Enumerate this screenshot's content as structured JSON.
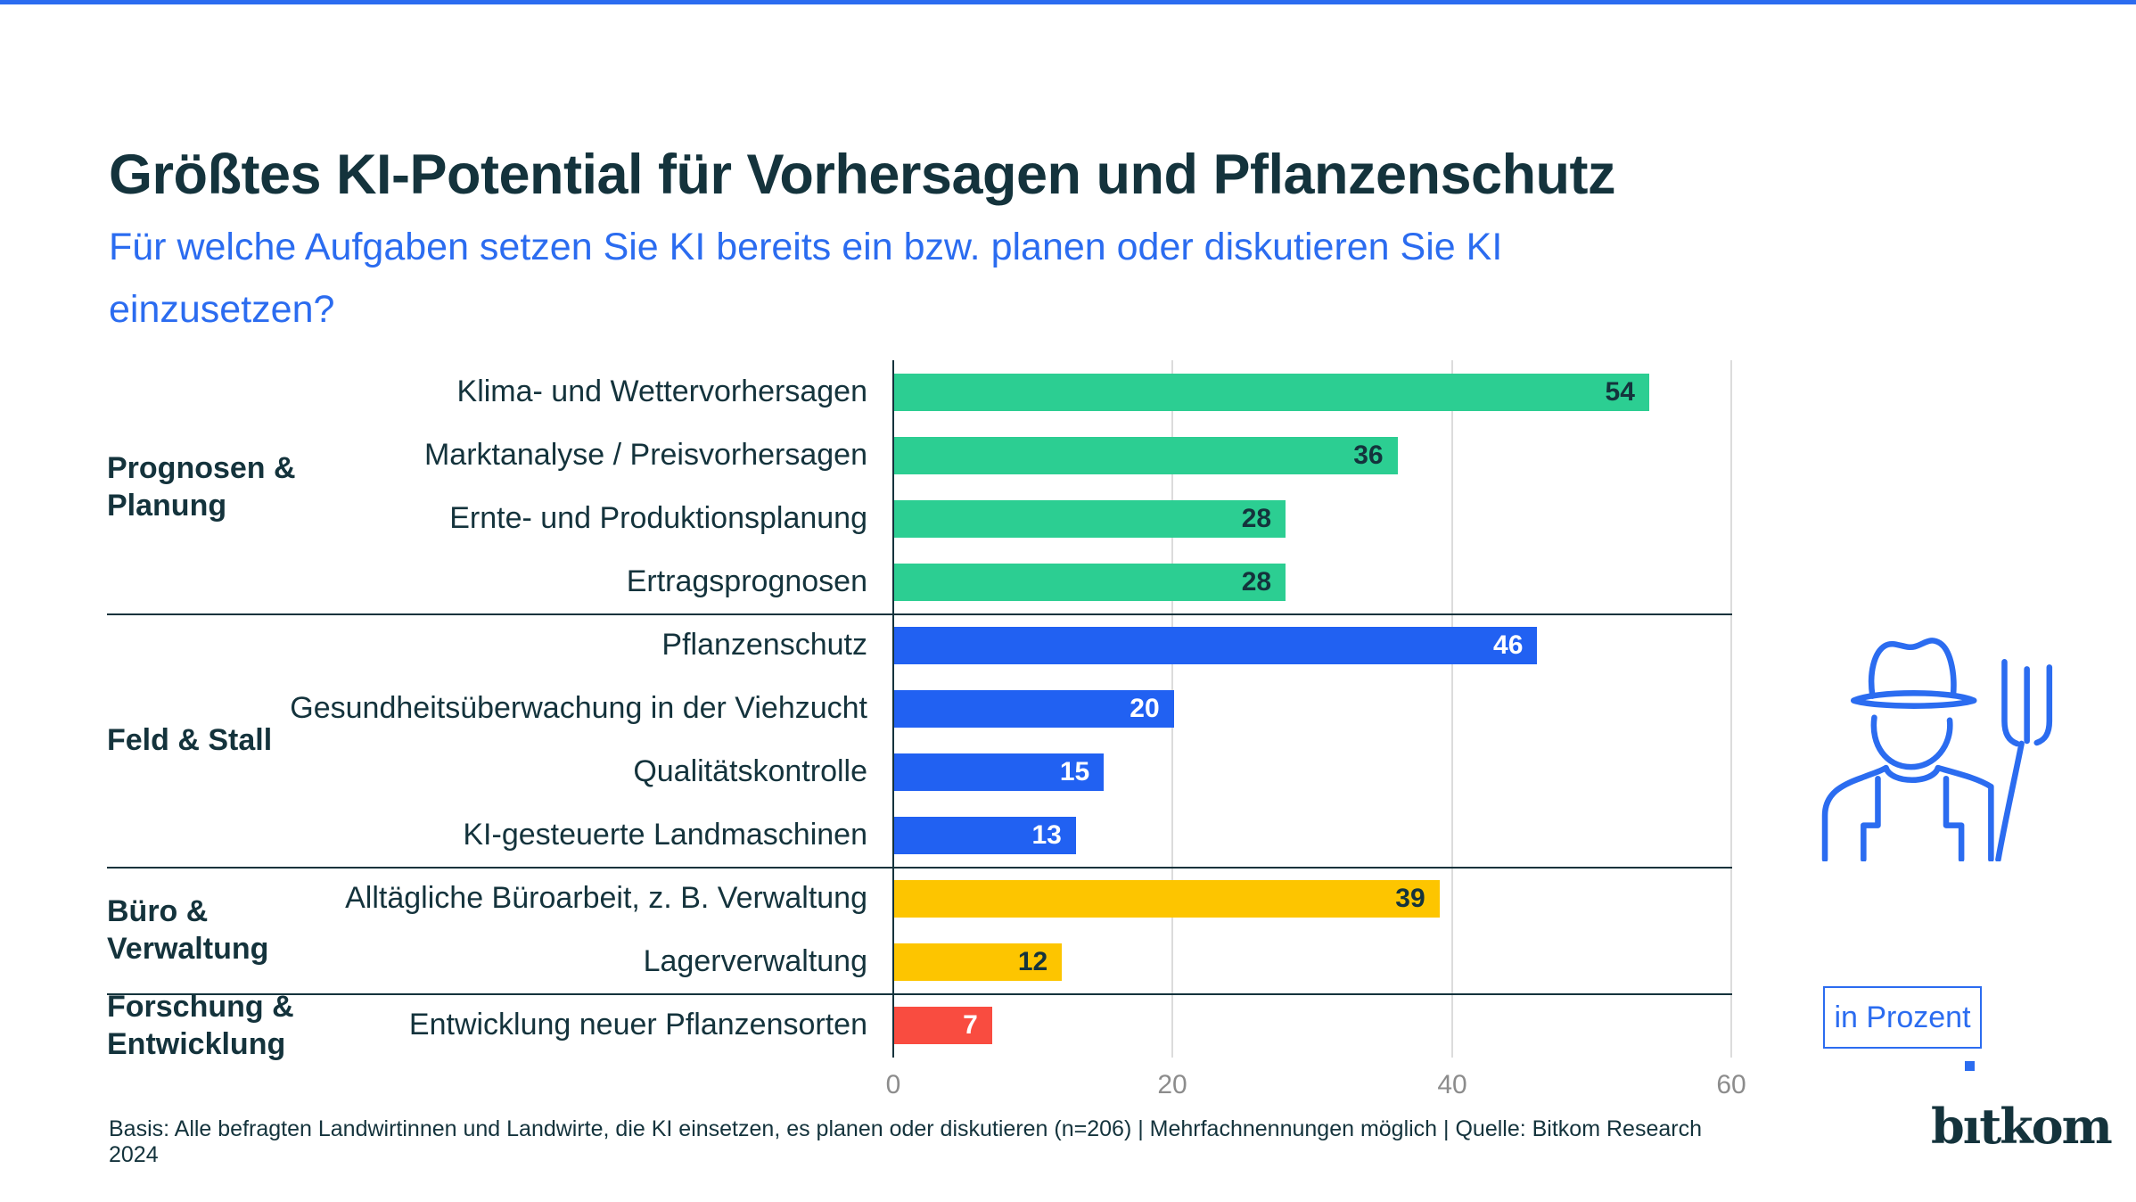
{
  "header": {
    "title": "Größtes KI-Potential für Vorhersagen und Pflanzenschutz",
    "subtitle_lines": [
      "Für welche Aufgaben setzen Sie KI bereits ein bzw. planen oder diskutieren Sie KI",
      "einzusetzen?"
    ]
  },
  "colors": {
    "accent": "#2B6CF0",
    "dark": "#14333C",
    "grid": "#DCDCDC",
    "tick": "#8C8C8C"
  },
  "chart_data": {
    "type": "bar",
    "orientation": "horizontal",
    "unit": "Prozent",
    "xlim": [
      0,
      60
    ],
    "axis_ticks": [
      "0",
      "20",
      "40",
      "60"
    ],
    "grid": "vertical lines at 20, 40, 60",
    "groups": [
      {
        "label": "Prognosen & Planung",
        "label_lines": [
          "Prognosen &",
          "Planung"
        ],
        "color": "#2CCE92",
        "value_color": "#14333C",
        "items": [
          {
            "label": "Klima- und Wettervorhersagen",
            "value": 54
          },
          {
            "label": "Marktanalyse / Preisvorhersagen",
            "value": 36
          },
          {
            "label": "Ernte- und Produktionsplanung",
            "value": 28
          },
          {
            "label": "Ertragsprognosen",
            "value": 28
          }
        ]
      },
      {
        "label": "Feld & Stall",
        "label_lines": [
          "Feld & Stall"
        ],
        "color": "#2161F2",
        "value_color": "#FFFFFF",
        "items": [
          {
            "label": "Pflanzenschutz",
            "value": 46
          },
          {
            "label": "Gesundheitsüberwachung in der Viehzucht",
            "value": 20
          },
          {
            "label": "Qualitätskontrolle",
            "value": 15
          },
          {
            "label": "KI-gesteuerte Landmaschinen",
            "value": 13
          }
        ]
      },
      {
        "label": "Büro & Verwaltung",
        "label_lines": [
          "Büro &",
          "Verwaltung"
        ],
        "color": "#FDC500",
        "value_color": "#14333C",
        "items": [
          {
            "label": "Alltägliche Büroarbeit, z. B. Verwaltung",
            "value": 39
          },
          {
            "label": "Lagerverwaltung",
            "value": 12
          }
        ]
      },
      {
        "label": "Forschung & Entwicklung",
        "label_lines": [
          "Forschung &",
          "Entwicklung"
        ],
        "color": "#F94C40",
        "value_color": "#FFFFFF",
        "items": [
          {
            "label": "Entwicklung neuer Pflanzensorten",
            "value": 7
          }
        ]
      }
    ]
  },
  "legend": {
    "unit_label": "in Prozent"
  },
  "footer": {
    "basis": "Basis: Alle befragten Landwirtinnen und Landwirte, die KI einsetzen, es planen oder diskutieren (n=206) | Mehrfachnennungen möglich | Quelle: Bitkom Research 2024"
  },
  "logo": {
    "pre": "b",
    "i": "ı",
    "post": "tkom"
  },
  "icons": {
    "farmer": "farmer-with-pitchfork-icon"
  }
}
